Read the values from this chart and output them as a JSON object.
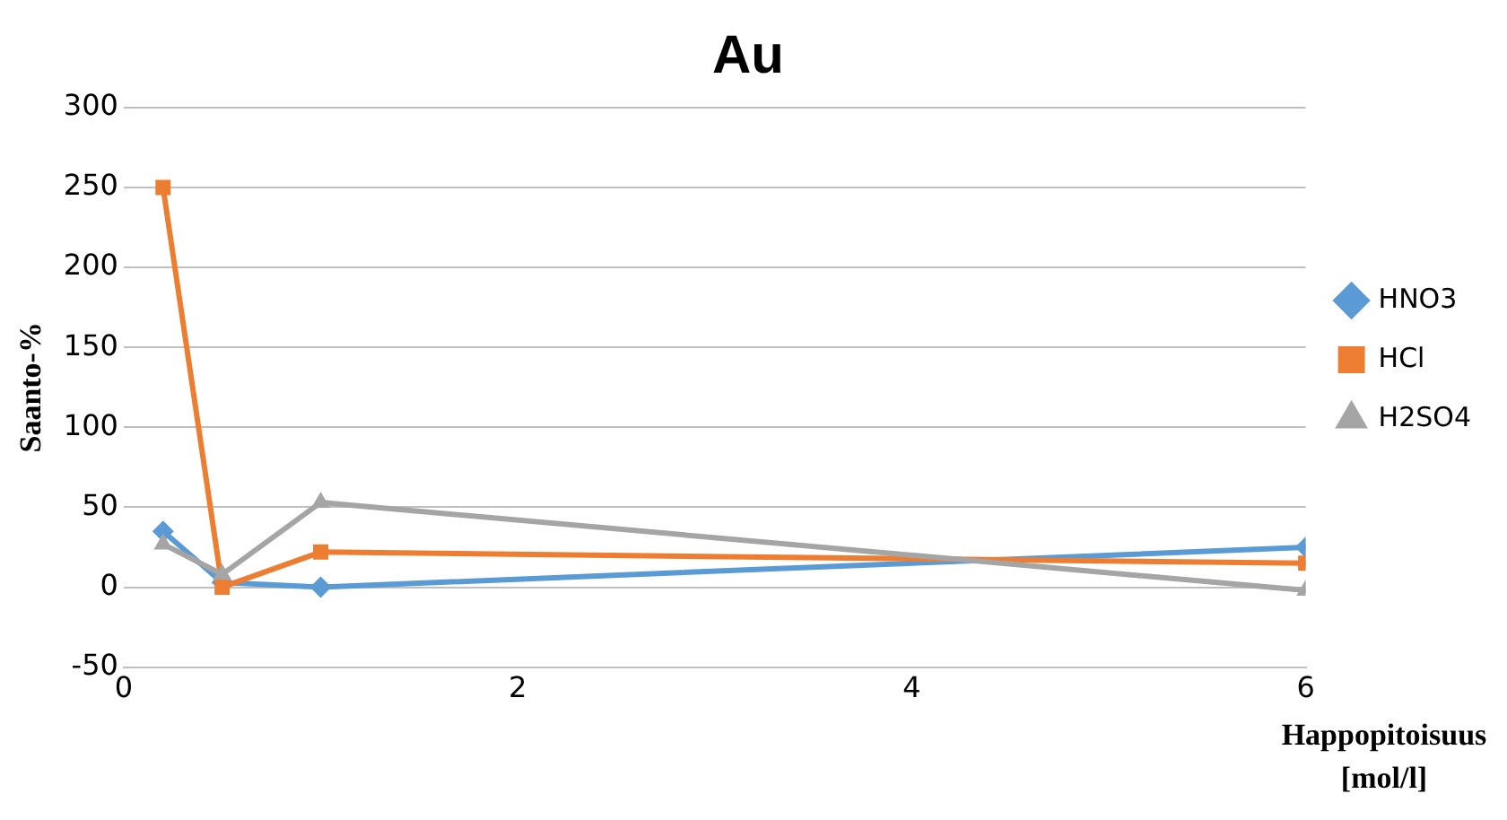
{
  "chart_data": {
    "type": "line",
    "title": "Au",
    "xlabel": "Happopitoisuus [mol/l]",
    "ylabel": "Saanto-%",
    "xlim": [
      0,
      6
    ],
    "xticks": [
      0,
      2,
      4,
      6
    ],
    "ylim": [
      -50,
      300
    ],
    "yticks": [
      -50,
      0,
      50,
      100,
      150,
      200,
      250,
      300
    ],
    "grid": "y",
    "legend": "right",
    "series": [
      {
        "name": "HNO3",
        "color": "#5b9bd5",
        "marker": "diamond",
        "x": [
          0.2,
          0.5,
          1,
          6
        ],
        "values": [
          35,
          3,
          0,
          25
        ]
      },
      {
        "name": "HCl",
        "color": "#ed7d31",
        "marker": "square",
        "x": [
          0.2,
          0.5,
          1,
          6
        ],
        "values": [
          250,
          0,
          22,
          15
        ]
      },
      {
        "name": "H2SO4",
        "color": "#a5a5a5",
        "marker": "triangle",
        "x": [
          0.2,
          0.5,
          1,
          6
        ],
        "values": [
          27,
          8,
          53,
          -2
        ]
      }
    ]
  }
}
